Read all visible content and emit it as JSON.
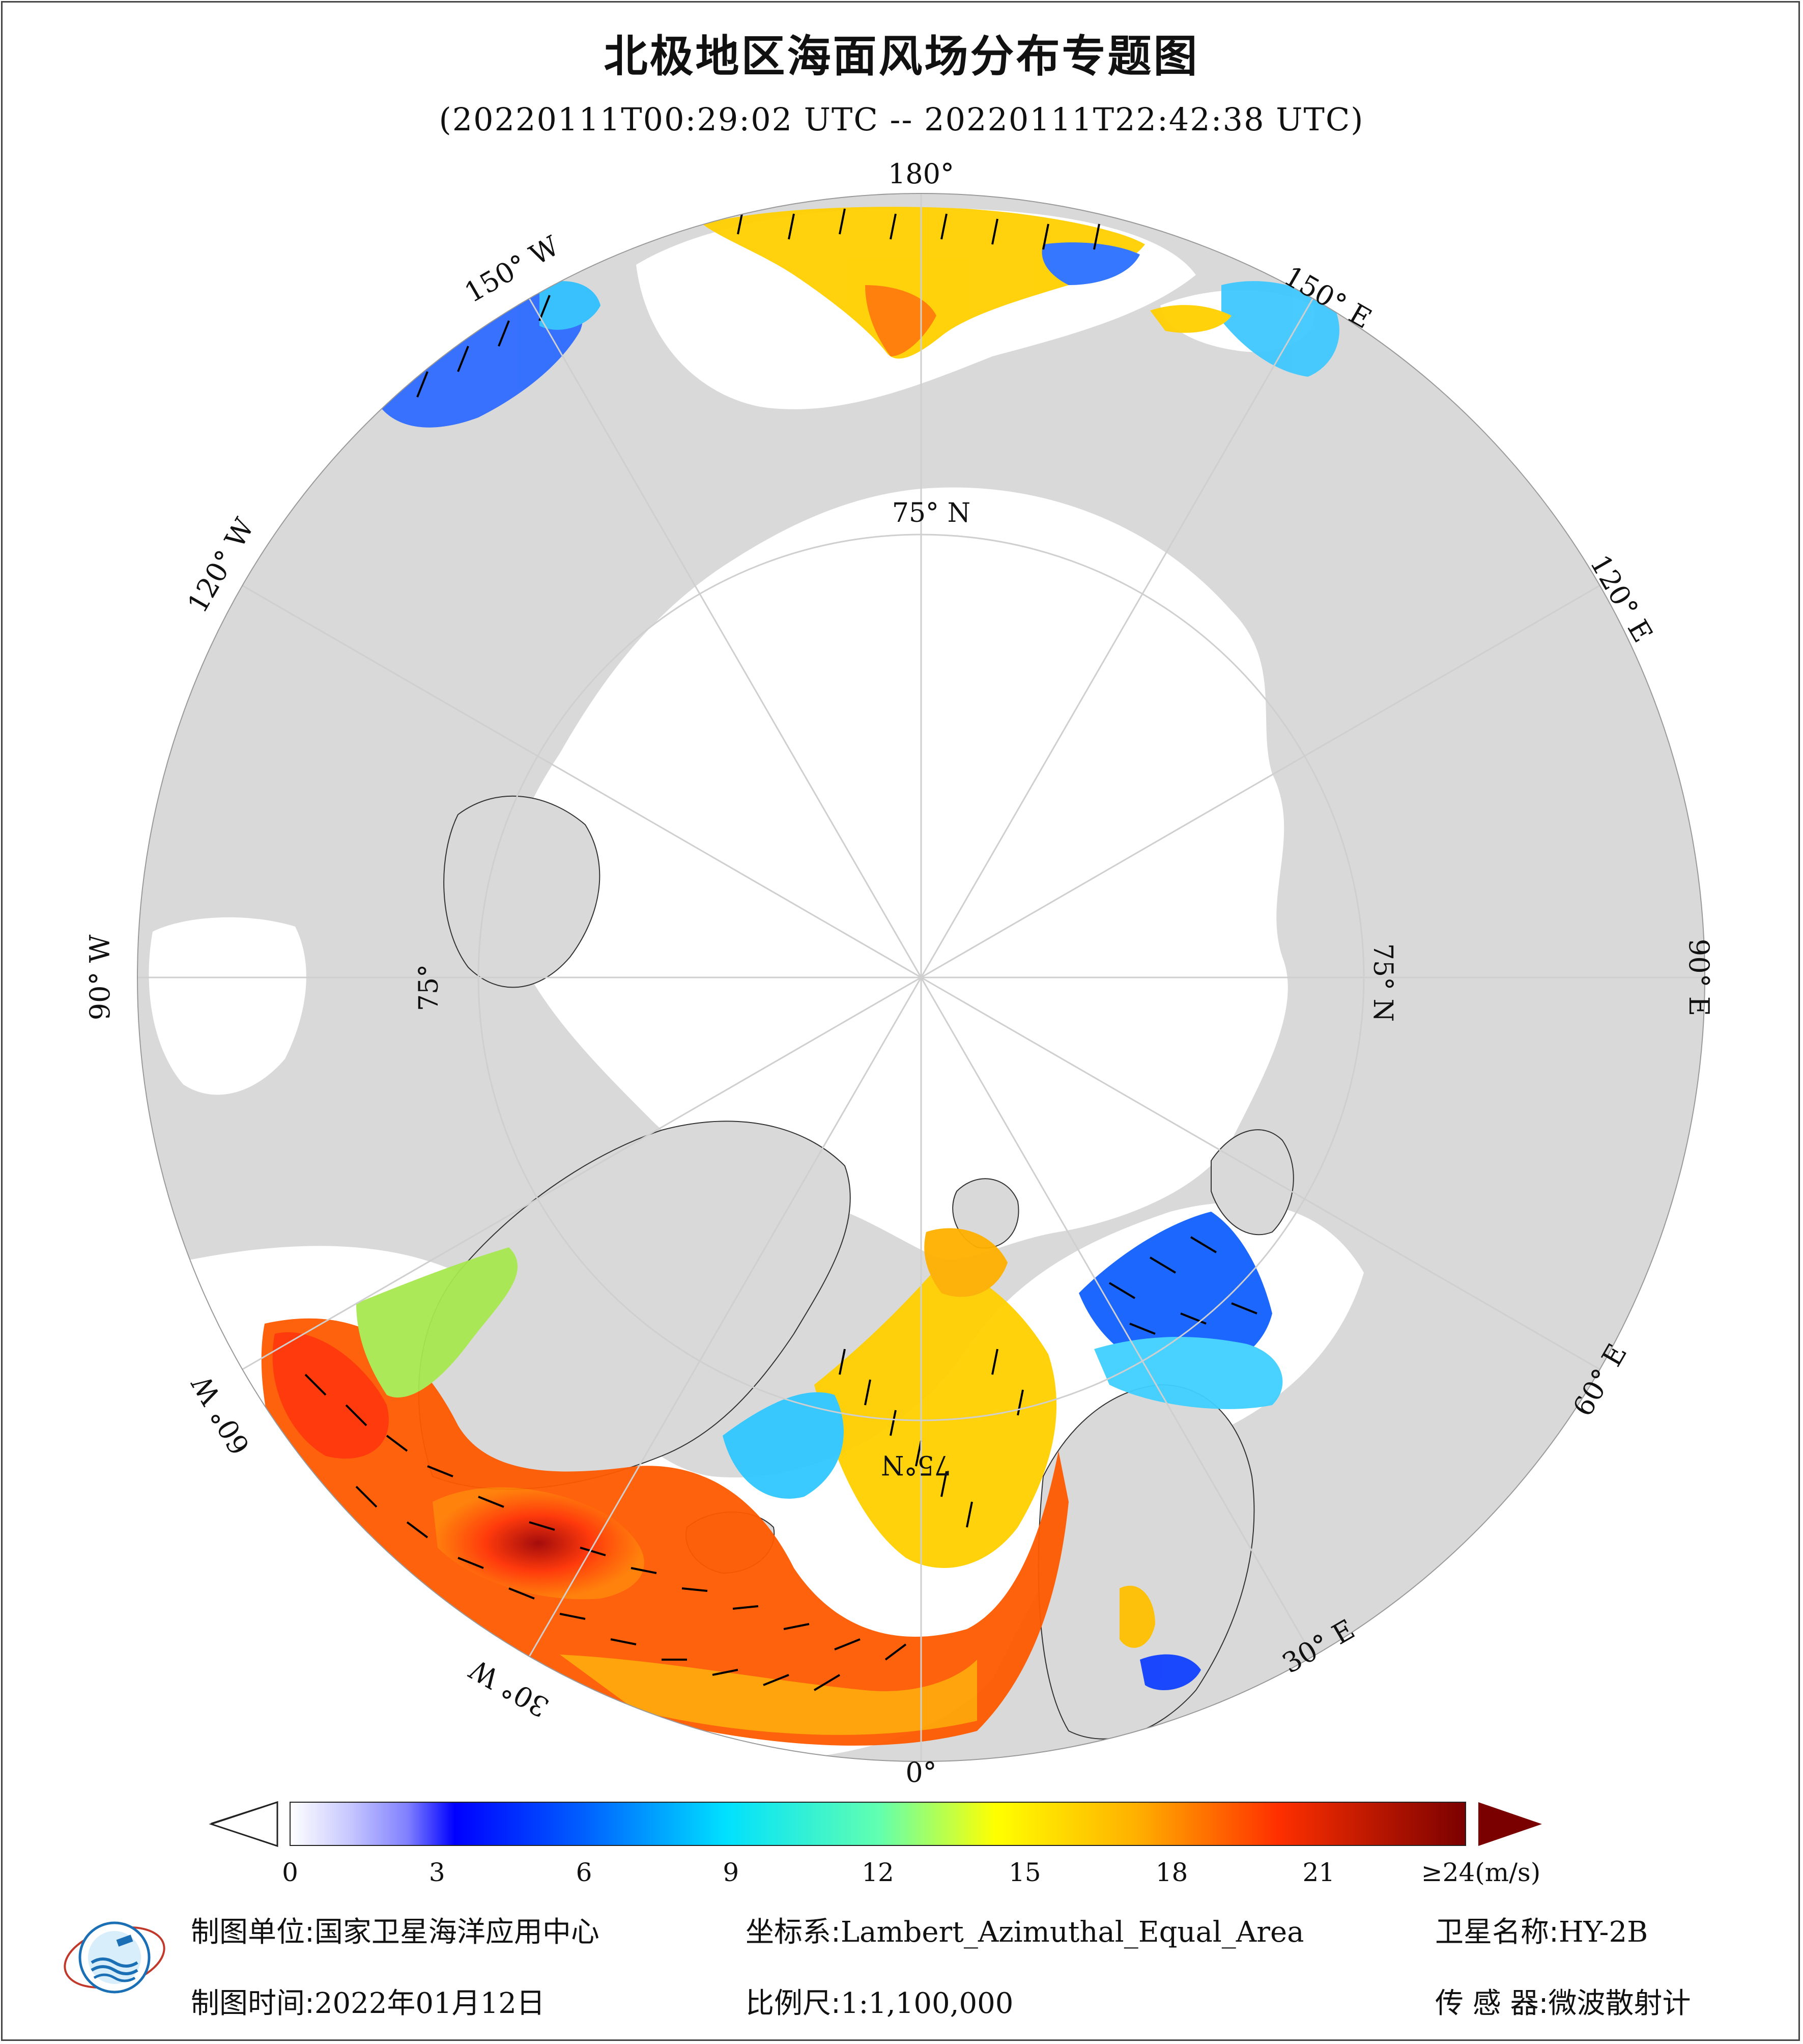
{
  "title": "北极地区海面风场分布专题图",
  "subtitle": "(20220111T00:29:02 UTC -- 20220111T22:42:38 UTC)",
  "map": {
    "projection_labels": {
      "lon_180": "180°",
      "lon_150w": "150° W",
      "lon_120w": "120° W",
      "lon_90w": "90° W",
      "lon_60w": "60° W",
      "lon_30w": "30° W",
      "lon_0": "0°",
      "lon_30e": "30° E",
      "lon_60e": "60° E",
      "lon_90e": "90° E",
      "lon_120e": "120° E",
      "lon_150e": "150° E",
      "lat_75n_top": "75° N",
      "lat_75n_right": "75° N",
      "lat_75n_left": "75°",
      "lat_75n_bottom": "75°N"
    },
    "colors": {
      "land": "#d9d9d9",
      "ocean_ice": "#ffffff",
      "graticule": "#cfcfcf",
      "arrow": "#000000"
    }
  },
  "colorbar": {
    "ticks": [
      "0",
      "3",
      "6",
      "9",
      "12",
      "15",
      "18",
      "21",
      "≥24(m/s)"
    ],
    "stops": [
      "#ffffff",
      "#c8c8ff",
      "#8080ff",
      "#0000ff",
      "#0050ff",
      "#00a0ff",
      "#00e6ff",
      "#40ffd0",
      "#a0ff60",
      "#ffff00",
      "#ffc000",
      "#ff8000",
      "#ff3000",
      "#d00000",
      "#800000"
    ],
    "over_color": "#7a0000"
  },
  "footer": {
    "org_label": "制图单位:",
    "org_value": "国家卫星海洋应用中心",
    "crs_label": "坐标系:",
    "crs_value": "Lambert_Azimuthal_Equal_Area",
    "sat_label": "卫星名称:",
    "sat_value": "HY-2B",
    "date_label": "制图时间:",
    "date_value": "2022年01月12日",
    "scale_label": "比例尺:",
    "scale_value": "1:1,100,000",
    "sensor_label": "传 感 器:",
    "sensor_value": "微波散射计"
  }
}
